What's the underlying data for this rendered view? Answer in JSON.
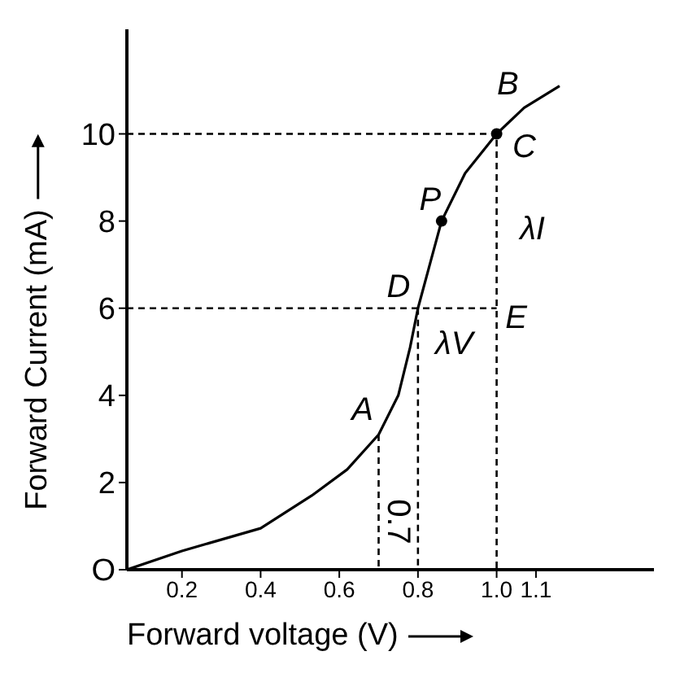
{
  "chart_data": {
    "type": "line",
    "xlabel": "Forward voltage (V)",
    "ylabel": "Forward Current (mA)",
    "xlim": [
      0.06,
      1.4
    ],
    "ylim": [
      0,
      12.4
    ],
    "xticks": [
      0.2,
      0.4,
      0.6,
      0.8,
      {
        "value": 1,
        "label": "1.0"
      },
      1.1
    ],
    "yticks": [
      {
        "value": 0,
        "label": "O"
      },
      2,
      4,
      6,
      8,
      10
    ],
    "grid": false,
    "legend": false,
    "marker": "none",
    "series": [
      {
        "color": "#000000",
        "line_style": "solid",
        "x": [
          0.06,
          0.2,
          0.4,
          0.53,
          0.62,
          0.7,
          0.75,
          0.78,
          0.8,
          0.83,
          0.86,
          0.92,
          1.0,
          1.07,
          1.16
        ],
        "values": [
          0,
          0.43,
          0.95,
          1.7,
          2.3,
          3.1,
          4.0,
          5.1,
          6.0,
          7.0,
          8.0,
          9.1,
          10,
          10.6,
          11.1
        ]
      },
      {
        "type": "line",
        "color": "#000000",
        "line_style": "dashed",
        "x": [
          0.06,
          1.0,
          1.0
        ],
        "values": [
          10,
          10,
          0
        ]
      },
      {
        "type": "line",
        "color": "#000000",
        "line_style": "dashed",
        "x": [
          0.06,
          1.0
        ],
        "values": [
          6,
          6
        ]
      },
      {
        "type": "line",
        "color": "#000000",
        "line_style": "dashed",
        "x": [
          0.8,
          0.8
        ],
        "values": [
          6,
          0
        ]
      },
      {
        "type": "line",
        "color": "#000000",
        "line_style": "dashed",
        "x": [
          0.7,
          0.7
        ],
        "values": [
          3.1,
          0
        ]
      },
      {
        "type": "scatter",
        "color": "#000000",
        "marker": "circle",
        "x": [
          0.86,
          1.0
        ],
        "values": [
          8,
          10
        ]
      }
    ],
    "annotations": [
      {
        "text": "A",
        "x": 0.7,
        "y": 3.1
      },
      {
        "text": "B",
        "x": 1.07,
        "y": 10.6
      },
      {
        "text": "C",
        "x": 1.0,
        "y": 10
      },
      {
        "text": "D",
        "x": 0.8,
        "y": 6
      },
      {
        "text": "E",
        "x": 1.0,
        "y": 6
      },
      {
        "text": "P",
        "x": 0.86,
        "y": 8
      },
      {
        "text": "λI",
        "x": 1.0,
        "y": 8
      },
      {
        "text": "λV",
        "x": 0.9,
        "y": 6
      },
      {
        "text": "0.7",
        "x": 0.7,
        "y": 1.1
      }
    ]
  }
}
